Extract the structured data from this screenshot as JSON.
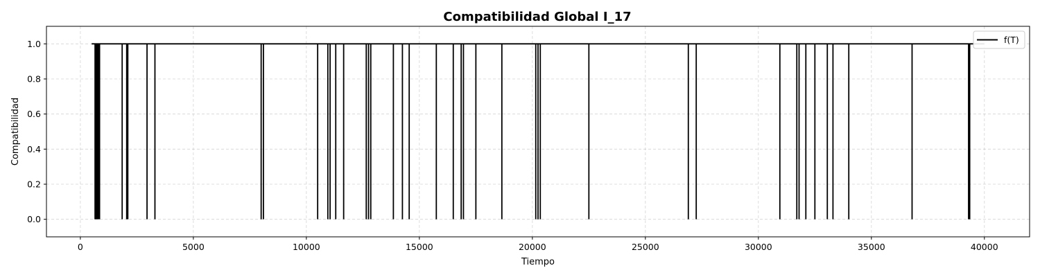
{
  "chart_data": {
    "type": "line",
    "title": "Compatibilidad Global I_17",
    "xlabel": "Tiempo",
    "ylabel": "Compatibilidad",
    "xlim": [
      -1500,
      42000
    ],
    "ylim": [
      -0.1,
      1.1
    ],
    "xticks": [
      0,
      5000,
      10000,
      15000,
      20000,
      25000,
      30000,
      35000,
      40000
    ],
    "xtick_labels": [
      "0",
      "5000",
      "10000",
      "15000",
      "20000",
      "25000",
      "30000",
      "35000",
      "40000"
    ],
    "yticks": [
      0.0,
      0.2,
      0.4,
      0.6,
      0.8,
      1.0
    ],
    "ytick_labels": [
      "0.0",
      "0.2",
      "0.4",
      "0.6",
      "0.8",
      "1.0"
    ],
    "grid": true,
    "legend_position": "top-right",
    "line_color": "#000000",
    "series": [
      {
        "name": "f(T)",
        "x_start": 500,
        "x_end": 40000,
        "baseline": 1.0,
        "drop_value": 0.0,
        "drops_at": [
          650,
          700,
          750,
          800,
          850,
          1850,
          2050,
          2100,
          2950,
          3300,
          8000,
          8100,
          10500,
          10950,
          11050,
          11300,
          11650,
          12650,
          12750,
          12850,
          13850,
          14250,
          14550,
          15750,
          16500,
          16850,
          16950,
          17500,
          18650,
          20150,
          20250,
          20350,
          22500,
          26900,
          27250,
          30950,
          31700,
          31800,
          32100,
          32500,
          33050,
          33300,
          34000,
          36800,
          39300,
          39350
        ]
      }
    ]
  }
}
